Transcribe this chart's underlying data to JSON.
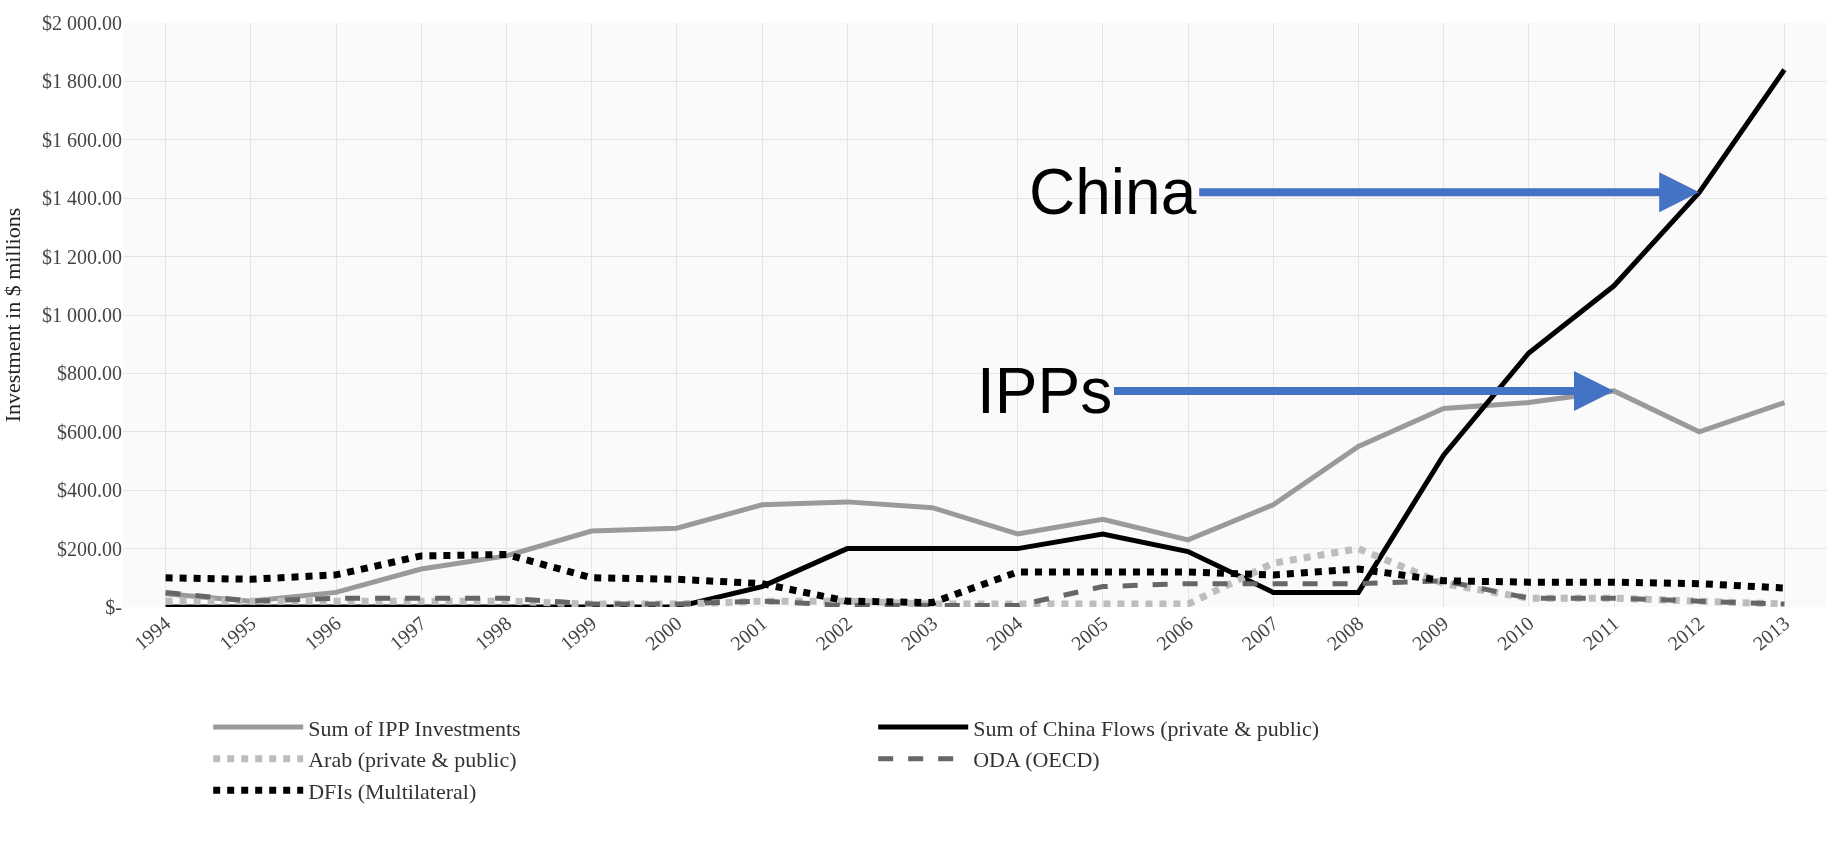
{
  "chart_data": {
    "type": "line",
    "ylabel": "Investment in $ millions",
    "categories": [
      "1994",
      "1995",
      "1996",
      "1997",
      "1998",
      "1999",
      "2000",
      "2001",
      "2002",
      "2003",
      "2004",
      "2005",
      "2006",
      "2007",
      "2008",
      "2009",
      "2010",
      "2011",
      "2012",
      "2013"
    ],
    "series": [
      {
        "name": "Sum of IPP Investments",
        "color": "#9a9a9a",
        "line_style": "solid",
        "values": [
          45,
          20,
          50,
          130,
          175,
          260,
          270,
          350,
          360,
          340,
          250,
          300,
          230,
          350,
          550,
          680,
          700,
          740,
          600,
          700
        ]
      },
      {
        "name": "Sum of China Flows (private & public)",
        "color": "#000000",
        "line_style": "solid",
        "values": [
          0,
          0,
          0,
          0,
          0,
          0,
          0,
          70,
          200,
          200,
          200,
          250,
          190,
          50,
          50,
          520,
          870,
          1100,
          1420,
          1840
        ]
      },
      {
        "name": "Arab (private & public)",
        "color": "#bdbdbd",
        "line_style": "dotted",
        "values": [
          20,
          20,
          20,
          20,
          20,
          10,
          10,
          20,
          20,
          10,
          10,
          10,
          10,
          150,
          200,
          80,
          30,
          30,
          20,
          10
        ]
      },
      {
        "name": "ODA (OECD)",
        "color": "#666666",
        "line_style": "dashed",
        "values": [
          50,
          20,
          30,
          30,
          30,
          10,
          10,
          20,
          5,
          5,
          5,
          70,
          80,
          80,
          80,
          90,
          30,
          30,
          20,
          10
        ]
      },
      {
        "name": "DFIs (Multilateral)",
        "color": "#000000",
        "line_style": "dotted",
        "values": [
          100,
          95,
          110,
          175,
          180,
          100,
          95,
          80,
          20,
          15,
          120,
          120,
          120,
          110,
          130,
          90,
          85,
          85,
          80,
          65
        ]
      }
    ],
    "ylim": [
      0,
      2000
    ],
    "yticks": [
      {
        "value": 0,
        "label": "$-"
      },
      {
        "value": 200,
        "label": "$200.00"
      },
      {
        "value": 400,
        "label": "$400.00"
      },
      {
        "value": 600,
        "label": "$600.00"
      },
      {
        "value": 800,
        "label": "$800.00"
      },
      {
        "value": 1000,
        "label": "$1 000.00"
      },
      {
        "value": 1200,
        "label": "$1 200.00"
      },
      {
        "value": 1400,
        "label": "$1 400.00"
      },
      {
        "value": 1600,
        "label": "$1 600.00"
      },
      {
        "value": 1800,
        "label": "$1 800.00"
      },
      {
        "value": 2000,
        "label": "$2 000.00"
      }
    ],
    "grid": true,
    "legend": "bottom",
    "marker": "none",
    "annotations": [
      {
        "text": "China",
        "x": "2012",
        "y": 1420
      },
      {
        "text": "IPPs",
        "x": "2011",
        "y": 740
      }
    ]
  }
}
